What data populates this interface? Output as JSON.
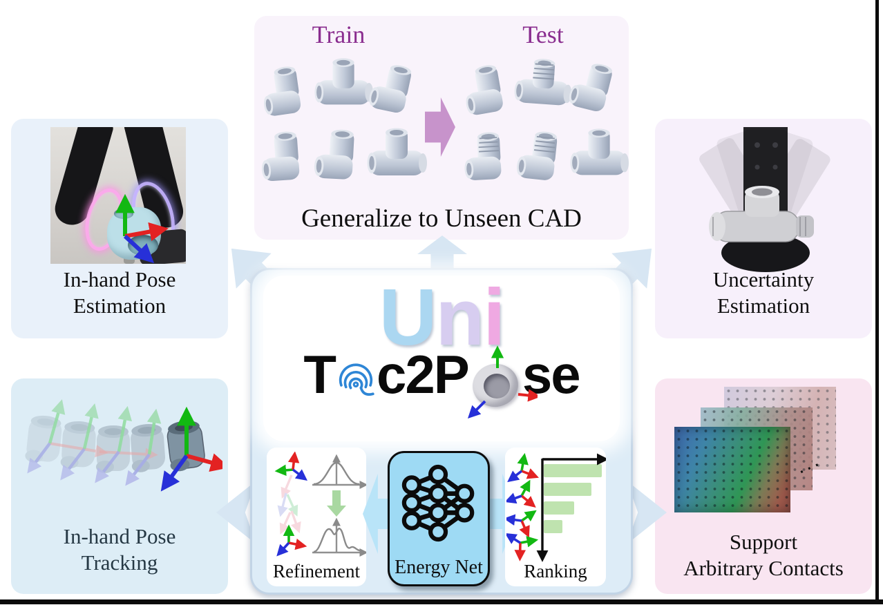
{
  "figure": {
    "title": "UniTac2Pose teaser figure"
  },
  "top_panel": {
    "train_label": "Train",
    "test_label": "Test",
    "caption": "Generalize to Unseen CAD"
  },
  "panels": {
    "pose_estimation": {
      "caption_line1": "In-hand Pose",
      "caption_line2": "Estimation"
    },
    "pose_tracking": {
      "caption_line1": "In-hand Pose",
      "caption_line2": "Tracking"
    },
    "uncertainty": {
      "caption_line1": "Uncertainty",
      "caption_line2": "Estimation"
    },
    "contacts": {
      "caption_line1": "Support",
      "caption_line2": "Arbitrary Contacts",
      "more_dots": "···"
    }
  },
  "logo": {
    "uni_u": "U",
    "uni_n": "n",
    "uni_i": "i",
    "tac_t": "T",
    "tac_mid": "c2P",
    "tac_end": "se"
  },
  "modules": {
    "refinement": "Refinement",
    "energy": "Energy Net",
    "ranking": "Ranking"
  },
  "ranking_chart": {
    "type": "bar",
    "orientation": "horizontal",
    "bars": [
      1.0,
      0.82,
      0.52,
      0.32
    ],
    "bar_color": "#bfe3af"
  },
  "icons": {
    "fingerprint": "fingerprint-icon",
    "neural_network": "neural-network-icon",
    "pose_axes": "xyz-axes-icon (green up, red right, blue down-left)",
    "train_test_arrow": "right-arrow-icon",
    "flow_arrows": "pale-blue-block-arrows"
  },
  "palette": {
    "top_panel_bg": "#f9f3fb",
    "left_panel_bg": "#e9f1fa",
    "tracking_panel_bg": "#ddedf6",
    "uncertainty_panel_bg": "#f7f0fb",
    "contacts_panel_bg": "#f9e5f1",
    "center_box_bg": "#ddecf7",
    "energy_box_bg": "#9edaf4",
    "train_test_label": "#8a2d8f",
    "train_test_arrow": "#c793cb",
    "big_arrow": "#d7e6f3",
    "inner_arrow": "#b9e4f8",
    "uni_u": "#abd7f1",
    "uni_n": "#d7cdf0",
    "uni_i": "#efa9e2",
    "axis_green": "#12b812",
    "axis_red": "#e32222",
    "axis_blue": "#2730d8"
  }
}
